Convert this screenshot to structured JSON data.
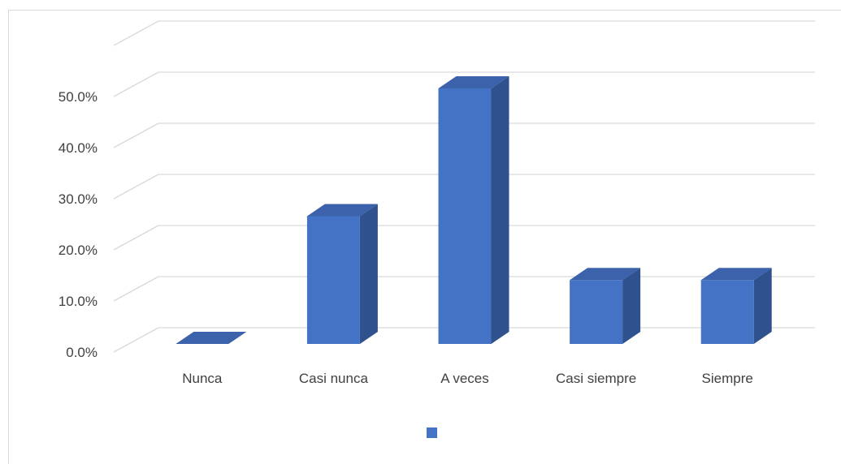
{
  "chart_data": {
    "type": "bar",
    "categories": [
      "Nunca",
      "Casi nunca",
      "A veces",
      "Casi siempre",
      "Siempre"
    ],
    "values": [
      0.0,
      25.0,
      50.0,
      12.5,
      12.5
    ],
    "y_ticks": [
      "0.0%",
      "10.0%",
      "20.0%",
      "30.0%",
      "40.0%",
      "50.0%"
    ],
    "ylim": [
      0,
      60
    ],
    "grid": true,
    "three_d": true,
    "legend": {
      "position": "bottom",
      "entries": [
        ""
      ]
    },
    "colors": {
      "bar_front": "#4472c4",
      "bar_side": "#2f528f",
      "bar_top": "#3b62aa",
      "grid": "#d9d9d9",
      "text": "#404040"
    }
  }
}
